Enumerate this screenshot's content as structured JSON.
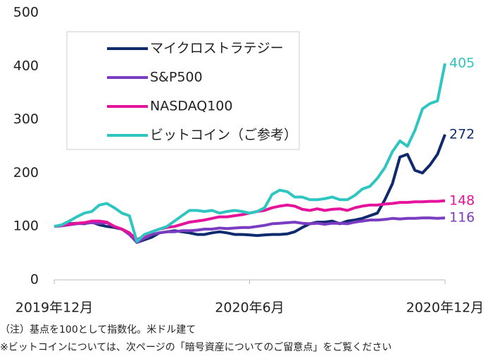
{
  "chart_data": {
    "type": "line",
    "categories": [
      "2019年12月",
      null,
      null,
      null,
      null,
      null,
      null,
      null,
      null,
      null,
      null,
      null,
      null,
      null,
      null,
      null,
      null,
      null,
      null,
      null,
      null,
      null,
      null,
      null,
      null,
      null,
      "2020年6月",
      null,
      null,
      null,
      null,
      null,
      null,
      null,
      null,
      null,
      null,
      null,
      null,
      null,
      null,
      null,
      null,
      null,
      null,
      null,
      null,
      null,
      null,
      null,
      null,
      null,
      "2020年12月"
    ],
    "series": [
      {
        "name": "マイクロストラテジー",
        "color": "#0f2b6e",
        "values": [
          100,
          102,
          105,
          106,
          105,
          108,
          103,
          100,
          98,
          95,
          88,
          70,
          75,
          80,
          88,
          90,
          92,
          90,
          88,
          85,
          85,
          88,
          90,
          88,
          85,
          85,
          84,
          83,
          84,
          85,
          85,
          86,
          90,
          98,
          105,
          108,
          108,
          110,
          105,
          110,
          112,
          115,
          120,
          125,
          150,
          180,
          230,
          235,
          205,
          200,
          215,
          235,
          272
        ]
      },
      {
        "name": "S&P500",
        "color": "#7a3cc0",
        "values": [
          100,
          101,
          103,
          105,
          106,
          107,
          106,
          107,
          100,
          95,
          85,
          70,
          78,
          85,
          88,
          90,
          90,
          92,
          92,
          93,
          95,
          95,
          97,
          96,
          97,
          98,
          98,
          100,
          102,
          105,
          106,
          107,
          108,
          106,
          105,
          106,
          104,
          106,
          106,
          105,
          108,
          110,
          112,
          112,
          113,
          115,
          114,
          115,
          115,
          116,
          116,
          115,
          116
        ]
      },
      {
        "name": "NASDAQ100",
        "color": "#e5139c",
        "values": [
          100,
          102,
          104,
          106,
          107,
          110,
          110,
          108,
          100,
          95,
          88,
          75,
          82,
          90,
          95,
          98,
          100,
          104,
          108,
          110,
          112,
          115,
          118,
          118,
          120,
          122,
          125,
          128,
          130,
          135,
          138,
          140,
          138,
          132,
          130,
          133,
          130,
          132,
          133,
          130,
          135,
          138,
          140,
          140,
          142,
          143,
          145,
          145,
          146,
          146,
          147,
          147,
          148
        ]
      },
      {
        "name": "ビットコイン（ご参考）",
        "color": "#2fc6c2",
        "values": [
          100,
          103,
          110,
          118,
          125,
          128,
          140,
          143,
          135,
          125,
          120,
          72,
          85,
          90,
          95,
          100,
          110,
          120,
          130,
          130,
          128,
          130,
          125,
          128,
          130,
          128,
          125,
          128,
          135,
          160,
          168,
          165,
          155,
          155,
          150,
          150,
          152,
          155,
          150,
          150,
          158,
          170,
          175,
          190,
          210,
          240,
          260,
          250,
          280,
          320,
          330,
          335,
          405
        ]
      }
    ],
    "ylim": [
      0,
      500
    ],
    "yticks": [
      0,
      100,
      200,
      300,
      400,
      500
    ],
    "grid": false,
    "notes": [
      "（注）基点を100として指数化。米ドル建て",
      "※ビットコインについては、次ページの「暗号資産についてのご留意点」をご覧ください"
    ]
  }
}
